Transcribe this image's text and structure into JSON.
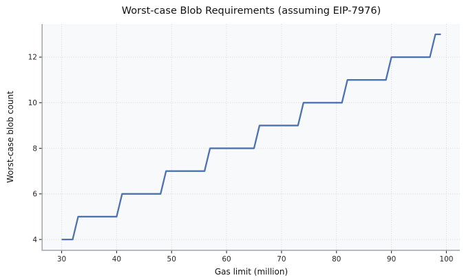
{
  "colors": {
    "page_bg": "#ffffff",
    "plot_bg": "#f8f9fb",
    "grid": "#d5d6db",
    "spine": "#a9a9b0",
    "tick_mark": "#262626",
    "line": "#4c72b0",
    "text": "#111111"
  },
  "chart_data": {
    "type": "line",
    "line_style": "step",
    "title": "Worst-case Blob Requirements (assuming EIP-7976)",
    "xlabel": "Gas limit (million)",
    "ylabel": "Worst-case blob count",
    "xlim": [
      26.55,
      102.45
    ],
    "ylim": [
      3.55,
      13.45
    ],
    "xticks": [
      30,
      40,
      50,
      60,
      70,
      80,
      90,
      100
    ],
    "yticks": [
      4,
      6,
      8,
      10,
      12
    ],
    "grid": "dotted",
    "legend": "none",
    "series": [
      {
        "name": "Worst-case blob count",
        "color": "#4c72b0",
        "segments": [
          {
            "gas_from": 30,
            "gas_to": 32,
            "blobs": 4
          },
          {
            "gas_from": 33,
            "gas_to": 40,
            "blobs": 5
          },
          {
            "gas_from": 41,
            "gas_to": 48,
            "blobs": 6
          },
          {
            "gas_from": 49,
            "gas_to": 56,
            "blobs": 7
          },
          {
            "gas_from": 57,
            "gas_to": 65,
            "blobs": 8
          },
          {
            "gas_from": 66,
            "gas_to": 73,
            "blobs": 9
          },
          {
            "gas_from": 74,
            "gas_to": 81,
            "blobs": 10
          },
          {
            "gas_from": 82,
            "gas_to": 89,
            "blobs": 11
          },
          {
            "gas_from": 90,
            "gas_to": 97,
            "blobs": 12
          },
          {
            "gas_from": 98,
            "gas_to": 99,
            "blobs": 13
          }
        ]
      }
    ]
  }
}
